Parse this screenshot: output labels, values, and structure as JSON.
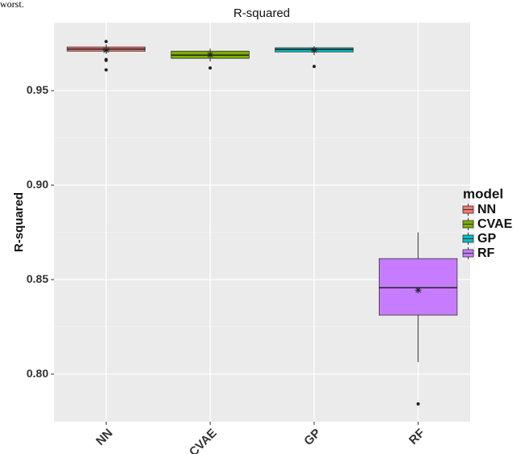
{
  "text_above": "worst.",
  "chart_data": {
    "type": "boxplot",
    "title": "R-squared",
    "y_label": "R-squared",
    "legend_title": "model",
    "ylim": [
      0.7748,
      0.986
    ],
    "yticks": [
      {
        "value": 0.8,
        "label": "0.80"
      },
      0.85,
      {
        "value": 0.9,
        "label": "0.90"
      },
      0.95
    ],
    "grid": true,
    "series": [
      {
        "name": "NN",
        "color": "#F8766D",
        "whisker_low": 0.9695,
        "q1": 0.9709,
        "median": 0.972,
        "q3": 0.9731,
        "whisker_high": 0.9745,
        "mean": 0.9714,
        "outliers": [
          0.976,
          0.9665,
          0.966,
          0.961
        ]
      },
      {
        "name": "CVAE",
        "color": "#7CAE00",
        "whisker_low": 0.9654,
        "q1": 0.9671,
        "median": 0.9688,
        "q3": 0.9709,
        "whisker_high": 0.9722,
        "mean": 0.969,
        "outliers": [
          0.962
        ]
      },
      {
        "name": "GP",
        "color": "#00BFC4",
        "whisker_low": 0.9688,
        "q1": 0.9705,
        "median": 0.9718,
        "q3": 0.9727,
        "whisker_high": 0.9735,
        "mean": 0.9714,
        "outliers": [
          0.9628
        ]
      },
      {
        "name": "RF",
        "color": "#C77CFF",
        "whisker_low": 0.8064,
        "q1": 0.8312,
        "median": 0.8457,
        "q3": 0.8611,
        "whisker_high": 0.875,
        "mean": 0.8444,
        "outliers": [
          0.7842
        ]
      }
    ]
  }
}
